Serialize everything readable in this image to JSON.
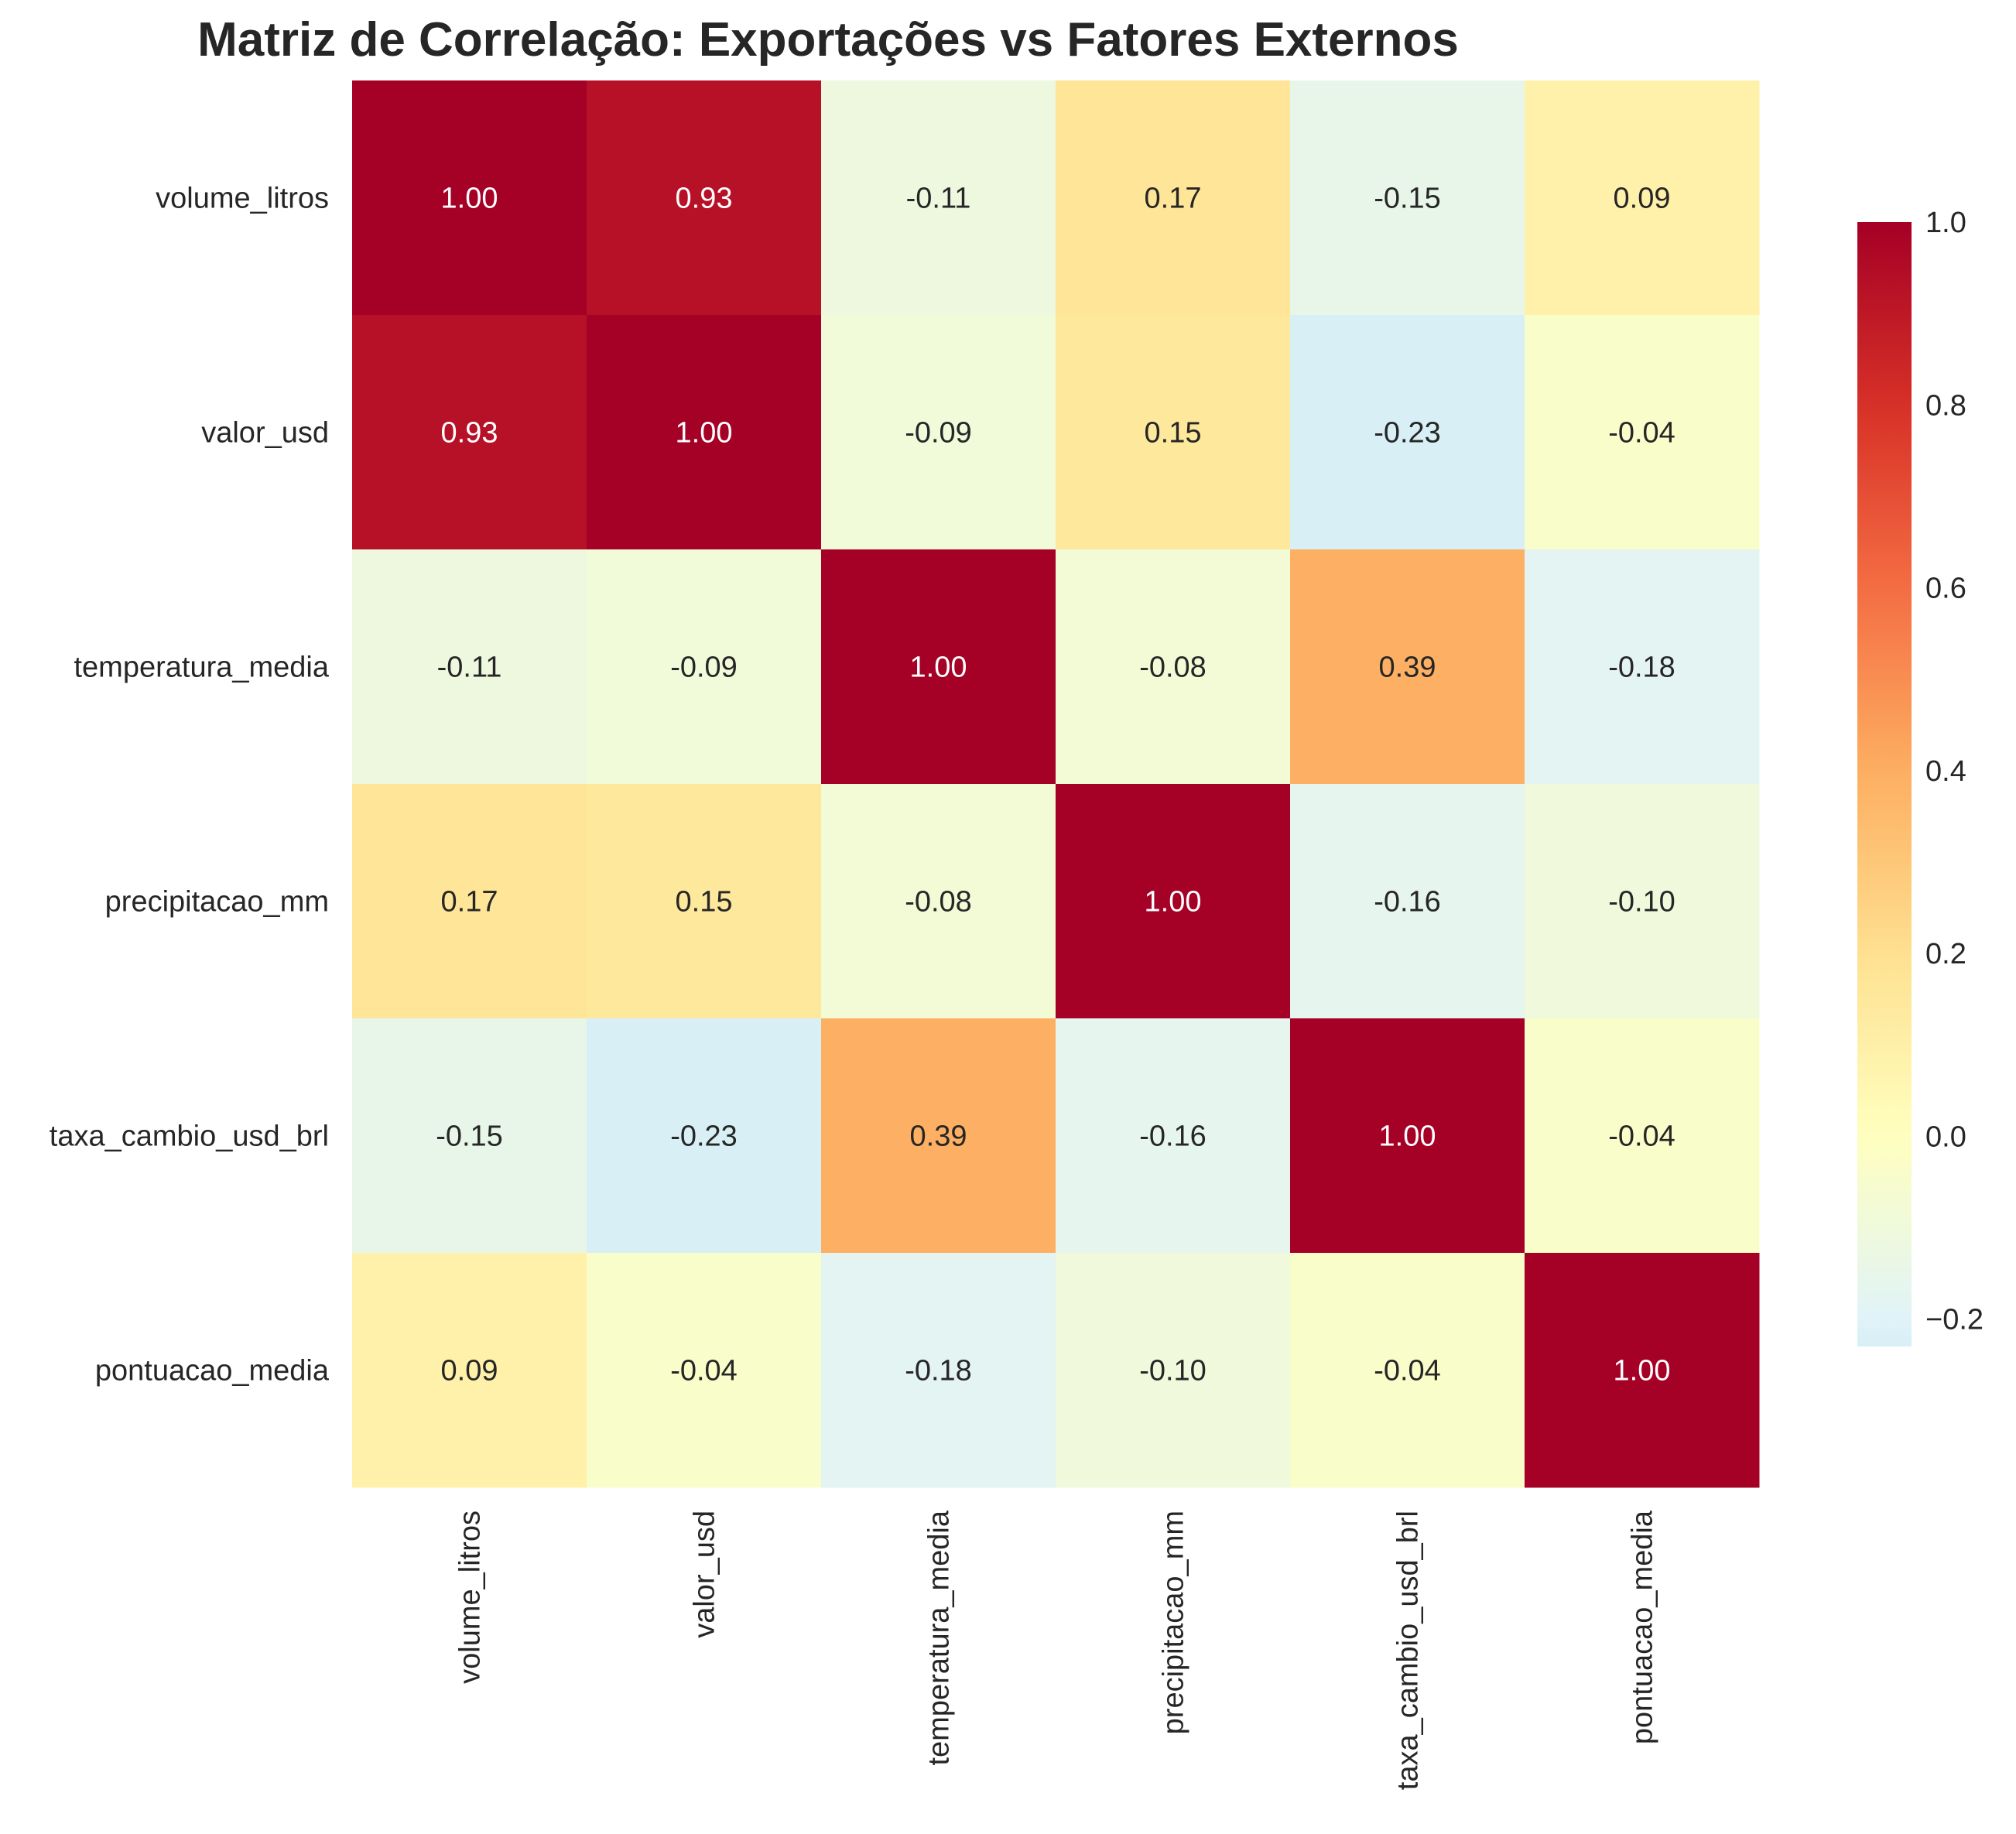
{
  "chart_data": {
    "type": "heatmap",
    "title": "Matriz de Correlação: Exportações vs Fatores Externos",
    "variables": [
      "volume_litros",
      "valor_usd",
      "temperatura_media",
      "precipitacao_mm",
      "taxa_cambio_usd_brl",
      "pontuacao_media"
    ],
    "values": [
      [
        1.0,
        0.93,
        -0.11,
        0.17,
        -0.15,
        0.09
      ],
      [
        0.93,
        1.0,
        -0.09,
        0.15,
        -0.23,
        -0.04
      ],
      [
        -0.11,
        -0.09,
        1.0,
        -0.08,
        0.39,
        -0.18
      ],
      [
        0.17,
        0.15,
        -0.08,
        1.0,
        -0.16,
        -0.1
      ],
      [
        -0.15,
        -0.23,
        0.39,
        -0.16,
        1.0,
        -0.04
      ],
      [
        0.09,
        -0.04,
        -0.18,
        -0.1,
        -0.04,
        1.0
      ]
    ],
    "value_format": "0.00",
    "colormap": "RdYlBu_r",
    "colorbar": {
      "range": [
        -0.23,
        1.0
      ],
      "ticks": [
        -0.2,
        0.0,
        0.2,
        0.4,
        0.6,
        0.8,
        1.0
      ],
      "tick_labels": [
        "−0.2",
        "0.0",
        "0.2",
        "0.4",
        "0.6",
        "0.8",
        "1.0"
      ]
    },
    "grid": false
  }
}
